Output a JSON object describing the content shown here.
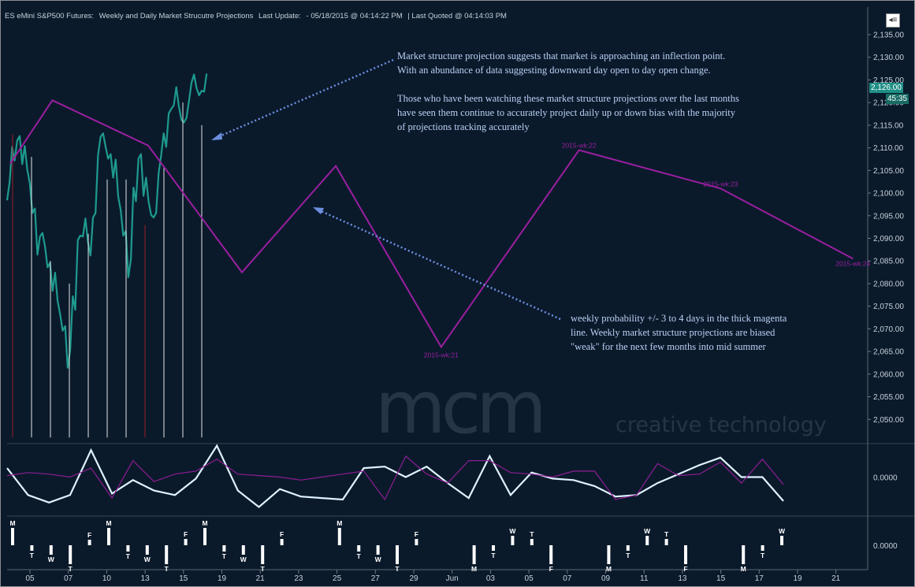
{
  "header": {
    "instrument": "ES eMini S&P500 Futures:",
    "study": "Weekly and Daily Market Strucutre Projections",
    "last_update_label": "Last Update:",
    "last_update": "- 05/18/2015 @ 04:14:22 PM",
    "last_quoted": "| Last Quoted @ 04:14:03 PM",
    "menu_icon": "chevron-left-menu-icon"
  },
  "annotations": {
    "top_note": [
      "Market structure projection suggests that market is approaching an inflection point.",
      "With an abundance of data suggesting downward day open to day open change.",
      "",
      "Those who have been watching these market structure projections over the last months",
      "have seen them continue to accurately project  daily up or down bias with the majority",
      "of projections tracking accurately"
    ],
    "bottom_note": [
      "weekly probability +/- 3 to 4 days in the thick magenta",
      "line. Weekly market structure projections are biased",
      "\"weak\" for the next few months into mid summer"
    ]
  },
  "watermark": {
    "logo_text": "mcm",
    "tagline": "creative technology"
  },
  "price_badges": {
    "last_price": "2,126.00",
    "timer": "45:35"
  },
  "colors": {
    "background": "#0a1a2b",
    "price": "#1e9a8e",
    "projection": "#9b1fa0",
    "oscillator": "#dff3ff",
    "oscillator_alt": "#8e1d93",
    "arrow": "#6c8fe0",
    "grid_text": "#c9d1da",
    "up_stick": "#e4e4e4",
    "down_stick": "#9b1c2a"
  },
  "chart_data": [
    {
      "type": "line",
      "name": "price-panel",
      "ylim": [
        2045,
        2139
      ],
      "y_ticks": [
        "2,050.00",
        "2,055.00",
        "2,060.00",
        "2,065.00",
        "2,070.00",
        "2,075.00",
        "2,080.00",
        "2,085.00",
        "2,090.00",
        "2,095.00",
        "2,100.00",
        "2,105.00",
        "2,110.00",
        "2,115.00",
        "2,120.00",
        "2,125.00",
        "2,130.00",
        "2,135.00"
      ],
      "x_tick_labels": [
        "05",
        "07",
        "10",
        "13",
        "15",
        "19",
        "21",
        "23",
        "25",
        "27",
        "29",
        "Jun",
        "03",
        "05",
        "07",
        "09",
        "11",
        "13",
        "15",
        "17",
        "19",
        "21"
      ],
      "price_series": [
        2100,
        2109,
        2112,
        2108,
        2104,
        2096,
        2088,
        2090,
        2084,
        2080,
        2075,
        2070,
        2063,
        2076,
        2090,
        2092,
        2088,
        2095,
        2110,
        2112,
        2108,
        2105,
        2098,
        2091,
        2083,
        2100,
        2108,
        2101,
        2097,
        2095,
        2106,
        2112,
        2118,
        2121,
        2118,
        2116,
        2122,
        2125,
        2122,
        2124
      ],
      "vertical_sticks": [
        {
          "index": 0,
          "low": 2046,
          "high": 2113,
          "color": "down"
        },
        {
          "index": 1,
          "low": 2046,
          "high": 2108,
          "color": "up"
        },
        {
          "index": 2,
          "low": 2046,
          "high": 2085,
          "color": "up"
        },
        {
          "index": 3,
          "low": 2046,
          "high": 2080,
          "color": "up"
        },
        {
          "index": 4,
          "low": 2046,
          "high": 2091,
          "color": "up"
        },
        {
          "index": 5,
          "low": 2046,
          "high": 2103,
          "color": "up"
        },
        {
          "index": 6,
          "low": 2046,
          "high": 2103,
          "color": "up"
        },
        {
          "index": 7,
          "low": 2046,
          "high": 2093,
          "color": "down"
        },
        {
          "index": 8,
          "low": 2046,
          "high": 2106,
          "color": "up"
        },
        {
          "index": 9,
          "low": 2046,
          "high": 2120,
          "color": "up"
        },
        {
          "index": 10,
          "low": 2046,
          "high": 2115,
          "color": "up"
        }
      ],
      "projection": {
        "series_labels": [
          "2015-wk:21",
          "2015-wk:22",
          "2015-wk:23",
          "2015-wk:24"
        ],
        "points": [
          {
            "x_index": 0.0,
            "y": 2106.5
          },
          {
            "x_index": 2.2,
            "y": 2120.5
          },
          {
            "x_index": 7.2,
            "y": 2110.5
          },
          {
            "x_index": 12.1,
            "y": 2082.5
          },
          {
            "x_index": 17.0,
            "y": 2106.0
          },
          {
            "x_index": 22.5,
            "y": 2066.0,
            "label_index": 0
          },
          {
            "x_index": 29.7,
            "y": 2109.5,
            "label_index": 1
          },
          {
            "x_index": 37.1,
            "y": 2101.0,
            "label_index": 2
          },
          {
            "x_index": 44.0,
            "y": 2085.5,
            "label_index": 3
          }
        ]
      }
    },
    {
      "type": "line",
      "name": "oscillator-panel",
      "y_tick": "0.0000",
      "ylim": [
        -1.1,
        1.1
      ],
      "series": [
        {
          "name": "white",
          "values": [
            0.3,
            -0.6,
            -0.85,
            -0.6,
            0.9,
            -0.55,
            -0.1,
            -0.45,
            -0.6,
            -0.05,
            1.05,
            -0.45,
            -1.0,
            -0.4,
            -0.65,
            -0.7,
            -0.75,
            0.3,
            0.35,
            0.0,
            0.35,
            -0.2,
            -0.7,
            0.7,
            -0.6,
            0.15,
            -0.05,
            -0.1,
            -0.3,
            -0.65,
            -0.6,
            -0.2,
            0.1,
            0.4,
            0.65,
            0.0,
            0.0,
            -0.8
          ]
        },
        {
          "name": "magenta",
          "values": [
            0.05,
            0.15,
            0.1,
            0.0,
            0.3,
            -0.7,
            0.55,
            -0.15,
            0.1,
            0.2,
            0.6,
            0.1,
            0.05,
            0.0,
            -0.1,
            0.0,
            0.1,
            0.2,
            -0.75,
            0.7,
            0.1,
            -0.2,
            0.55,
            0.55,
            0.15,
            0.1,
            0.0,
            0.2,
            0.2,
            -0.75,
            -0.6,
            0.45,
            0.05,
            0.1,
            0.5,
            -0.2,
            0.6,
            -0.25
          ]
        }
      ]
    },
    {
      "type": "bar",
      "name": "day-markers",
      "y_tick": "0.0000",
      "markers": [
        {
          "x_index": 0,
          "letter": "M",
          "dir": "up",
          "h": 0.9
        },
        {
          "x_index": 1,
          "letter": "T",
          "dir": "down",
          "h": 0.15
        },
        {
          "x_index": 2,
          "letter": "W",
          "dir": "down",
          "h": 0.4
        },
        {
          "x_index": 3,
          "letter": "T",
          "dir": "down",
          "h": 1.0
        },
        {
          "x_index": 4,
          "letter": "F",
          "dir": "up",
          "h": 0.15
        },
        {
          "x_index": 5,
          "letter": "M",
          "dir": "up",
          "h": 0.9
        },
        {
          "x_index": 6,
          "letter": "T",
          "dir": "down",
          "h": 0.2
        },
        {
          "x_index": 7,
          "letter": "W",
          "dir": "down",
          "h": 0.4
        },
        {
          "x_index": 8,
          "letter": "T",
          "dir": "down",
          "h": 1.0
        },
        {
          "x_index": 9,
          "letter": "F",
          "dir": "up",
          "h": 0.2
        },
        {
          "x_index": 10,
          "letter": "M",
          "dir": "up",
          "h": 0.9
        },
        {
          "x_index": 11,
          "letter": "T",
          "dir": "down",
          "h": 0.2
        },
        {
          "x_index": 12,
          "letter": "W",
          "dir": "down",
          "h": 0.4
        },
        {
          "x_index": 13,
          "letter": "T",
          "dir": "down",
          "h": 1.0
        },
        {
          "x_index": 14,
          "letter": "F",
          "dir": "up",
          "h": 0.2
        },
        {
          "x_index": 17,
          "letter": "M",
          "dir": "up",
          "h": 0.9
        },
        {
          "x_index": 18,
          "letter": "T",
          "dir": "down",
          "h": 0.2
        },
        {
          "x_index": 19,
          "letter": "W",
          "dir": "down",
          "h": 0.4
        },
        {
          "x_index": 20,
          "letter": "T",
          "dir": "down",
          "h": 1.0
        },
        {
          "x_index": 21,
          "letter": "F",
          "dir": "up",
          "h": 0.2
        },
        {
          "x_index": 24,
          "letter": "M",
          "dir": "down",
          "h": 1.0
        },
        {
          "x_index": 25,
          "letter": "T",
          "dir": "down",
          "h": 0.15
        },
        {
          "x_index": 26,
          "letter": "W",
          "dir": "up",
          "h": 0.4
        },
        {
          "x_index": 27,
          "letter": "T",
          "dir": "up",
          "h": 0.2
        },
        {
          "x_index": 28,
          "letter": "F",
          "dir": "down",
          "h": 1.0
        },
        {
          "x_index": 31,
          "letter": "M",
          "dir": "down",
          "h": 1.0
        },
        {
          "x_index": 32,
          "letter": "T",
          "dir": "down",
          "h": 0.15
        },
        {
          "x_index": 33,
          "letter": "W",
          "dir": "up",
          "h": 0.4
        },
        {
          "x_index": 34,
          "letter": "T",
          "dir": "up",
          "h": 0.2
        },
        {
          "x_index": 35,
          "letter": "F",
          "dir": "down",
          "h": 1.0
        },
        {
          "x_index": 38,
          "letter": "M",
          "dir": "down",
          "h": 1.0
        },
        {
          "x_index": 39,
          "letter": "T",
          "dir": "down",
          "h": 0.15
        },
        {
          "x_index": 40,
          "letter": "W",
          "dir": "up",
          "h": 0.4
        }
      ]
    }
  ]
}
